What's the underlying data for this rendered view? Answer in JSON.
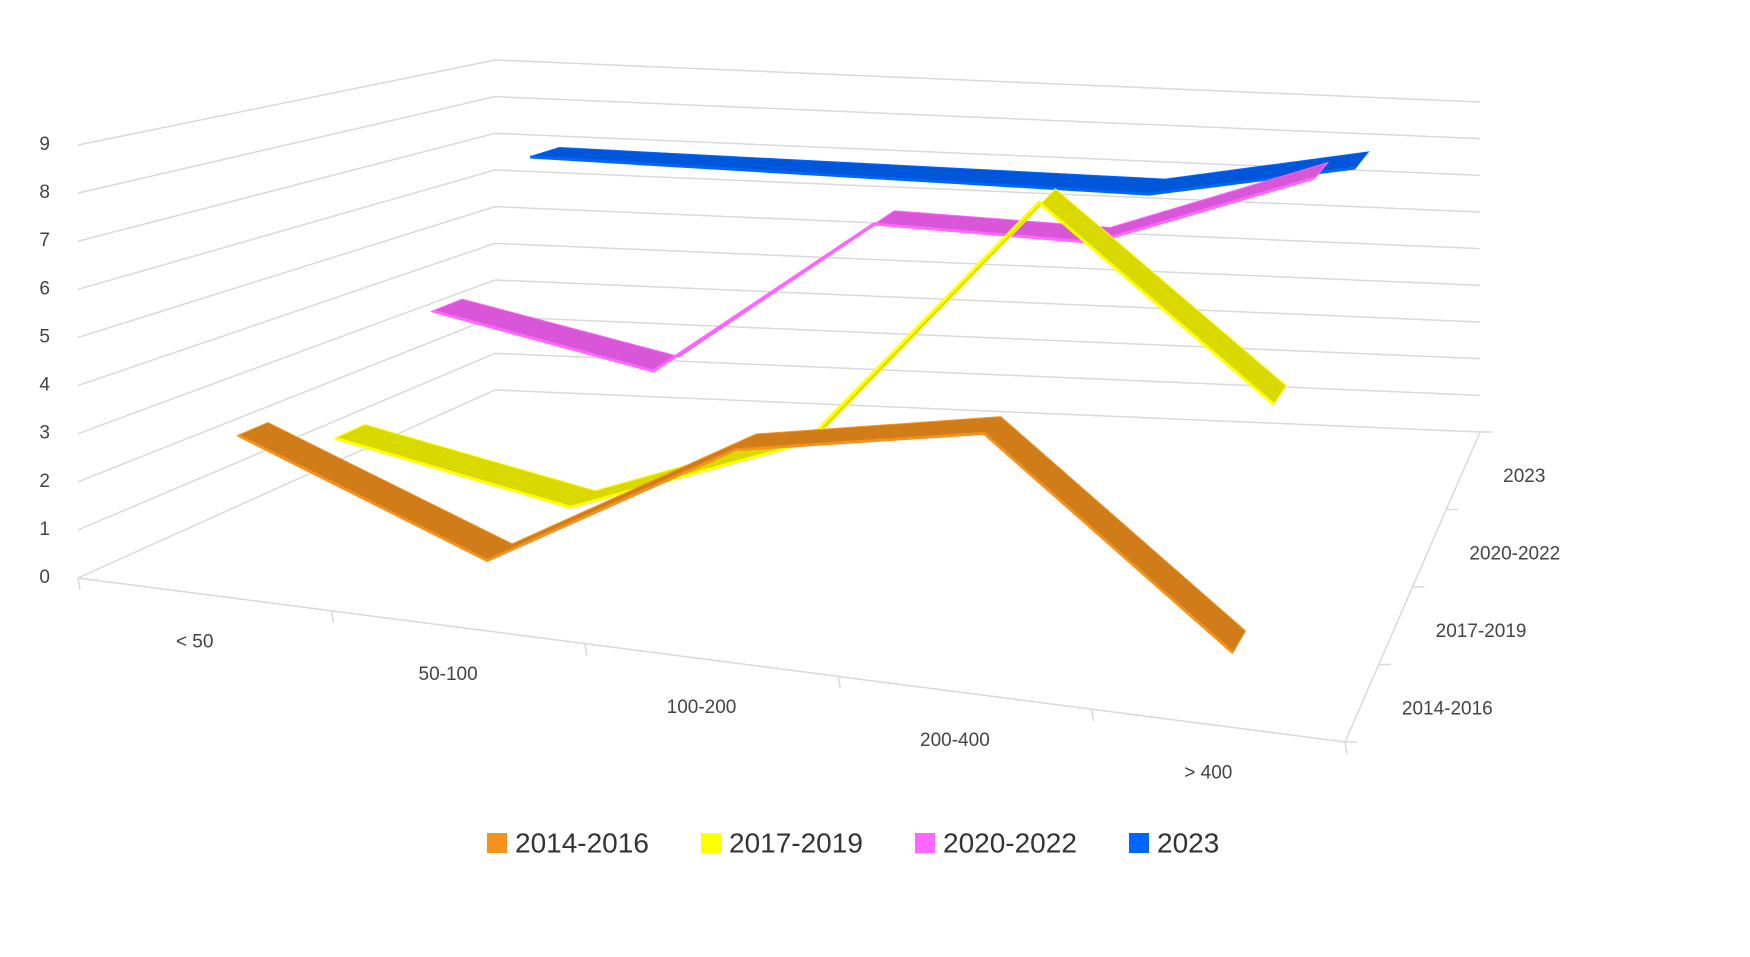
{
  "chart_data": {
    "type": "line3d",
    "categories": [
      "< 50",
      "50-100",
      "100-200",
      "200-400",
      "> 400"
    ],
    "series": [
      {
        "name": "2014-2016",
        "color": "#f5921e",
        "values": [
          3,
          1,
          4,
          5,
          1
        ]
      },
      {
        "name": "2017-2019",
        "color": "#ffff00",
        "values": [
          2,
          1,
          3,
          9,
          5
        ]
      },
      {
        "name": "2020-2022",
        "color": "#ff66ff",
        "values": [
          4,
          3,
          7,
          7,
          9
        ]
      },
      {
        "name": "2023",
        "color": "#0066ff",
        "values": [
          7,
          7,
          7,
          7,
          8
        ]
      }
    ],
    "ylim": [
      0,
      9
    ],
    "yticks": [
      0,
      1,
      2,
      3,
      4,
      5,
      6,
      7,
      8,
      9
    ],
    "grid": true,
    "legend": "bottom"
  }
}
